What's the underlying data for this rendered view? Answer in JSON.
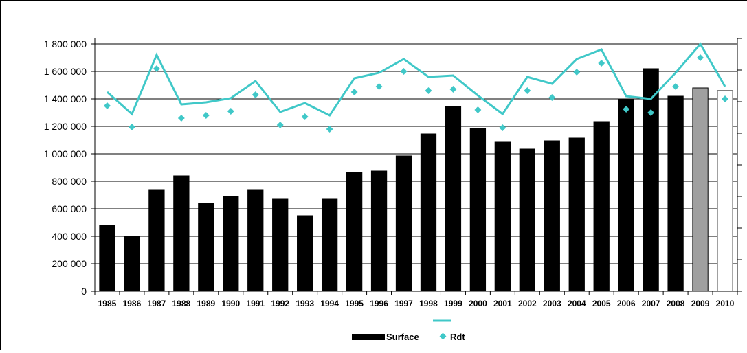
{
  "chart_data": {
    "type": "bar",
    "categories": [
      "1985",
      "1986",
      "1987",
      "1988",
      "1989",
      "1990",
      "1991",
      "1992",
      "1993",
      "1994",
      "1995",
      "1996",
      "1997",
      "1998",
      "1999",
      "2000",
      "2001",
      "2002",
      "2003",
      "2004",
      "2005",
      "2006",
      "2007",
      "2008",
      "2009",
      "2010"
    ],
    "ylim": [
      0,
      1800000
    ],
    "y_ticks": [
      0,
      200000,
      400000,
      600000,
      800000,
      1000000,
      1200000,
      1400000,
      1600000,
      1800000
    ],
    "y_tick_labels": [
      "0",
      "200 000",
      "400 000",
      "600 000",
      "800 000",
      "1 000 000",
      "1 200 000",
      "1 400 000",
      "1 600 000",
      "1 800 000"
    ],
    "secondary_axis": {
      "ticks": 8,
      "labels_shown": false
    },
    "grid": true,
    "legend_position": "bottom-center",
    "series": [
      {
        "name": "Surface",
        "type": "bar",
        "axis": "left",
        "values": [
          480000,
          395000,
          740000,
          840000,
          640000,
          690000,
          740000,
          670000,
          550000,
          670000,
          865000,
          875000,
          985000,
          1145000,
          1345000,
          1185000,
          1085000,
          1035000,
          1095000,
          1115000,
          1235000,
          1400000,
          1620000,
          1420000,
          1480000,
          1460000
        ],
        "bar_colors": [
          "#000000",
          "#000000",
          "#000000",
          "#000000",
          "#000000",
          "#000000",
          "#000000",
          "#000000",
          "#000000",
          "#000000",
          "#000000",
          "#000000",
          "#000000",
          "#000000",
          "#000000",
          "#000000",
          "#000000",
          "#000000",
          "#000000",
          "#000000",
          "#000000",
          "#000000",
          "#000000",
          "#000000",
          "#a0a0a0",
          "#ffffff"
        ]
      },
      {
        "name": "Rdt",
        "type": "scatter",
        "axis": "right",
        "color": "#40c8c8",
        "values": [
          1350000,
          1195000,
          1620000,
          1260000,
          1280000,
          1310000,
          1430000,
          1210000,
          1270000,
          1180000,
          1450000,
          1490000,
          1600000,
          1460000,
          1470000,
          1320000,
          1190000,
          1460000,
          1410000,
          1595000,
          1660000,
          1325000,
          1300000,
          1490000,
          1700000,
          1400000
        ]
      },
      {
        "type": "line",
        "axis": "right",
        "color": "#40c8c8",
        "values": [
          1450000,
          1290000,
          1720000,
          1360000,
          1375000,
          1405000,
          1530000,
          1305000,
          1370000,
          1280000,
          1550000,
          1590000,
          1690000,
          1560000,
          1570000,
          1425000,
          1290000,
          1560000,
          1510000,
          1690000,
          1760000,
          1420000,
          1400000,
          1590000,
          1800000,
          1490000
        ]
      }
    ]
  },
  "legend": {
    "surface_label": "Surface",
    "rdt_label": "Rdt"
  }
}
